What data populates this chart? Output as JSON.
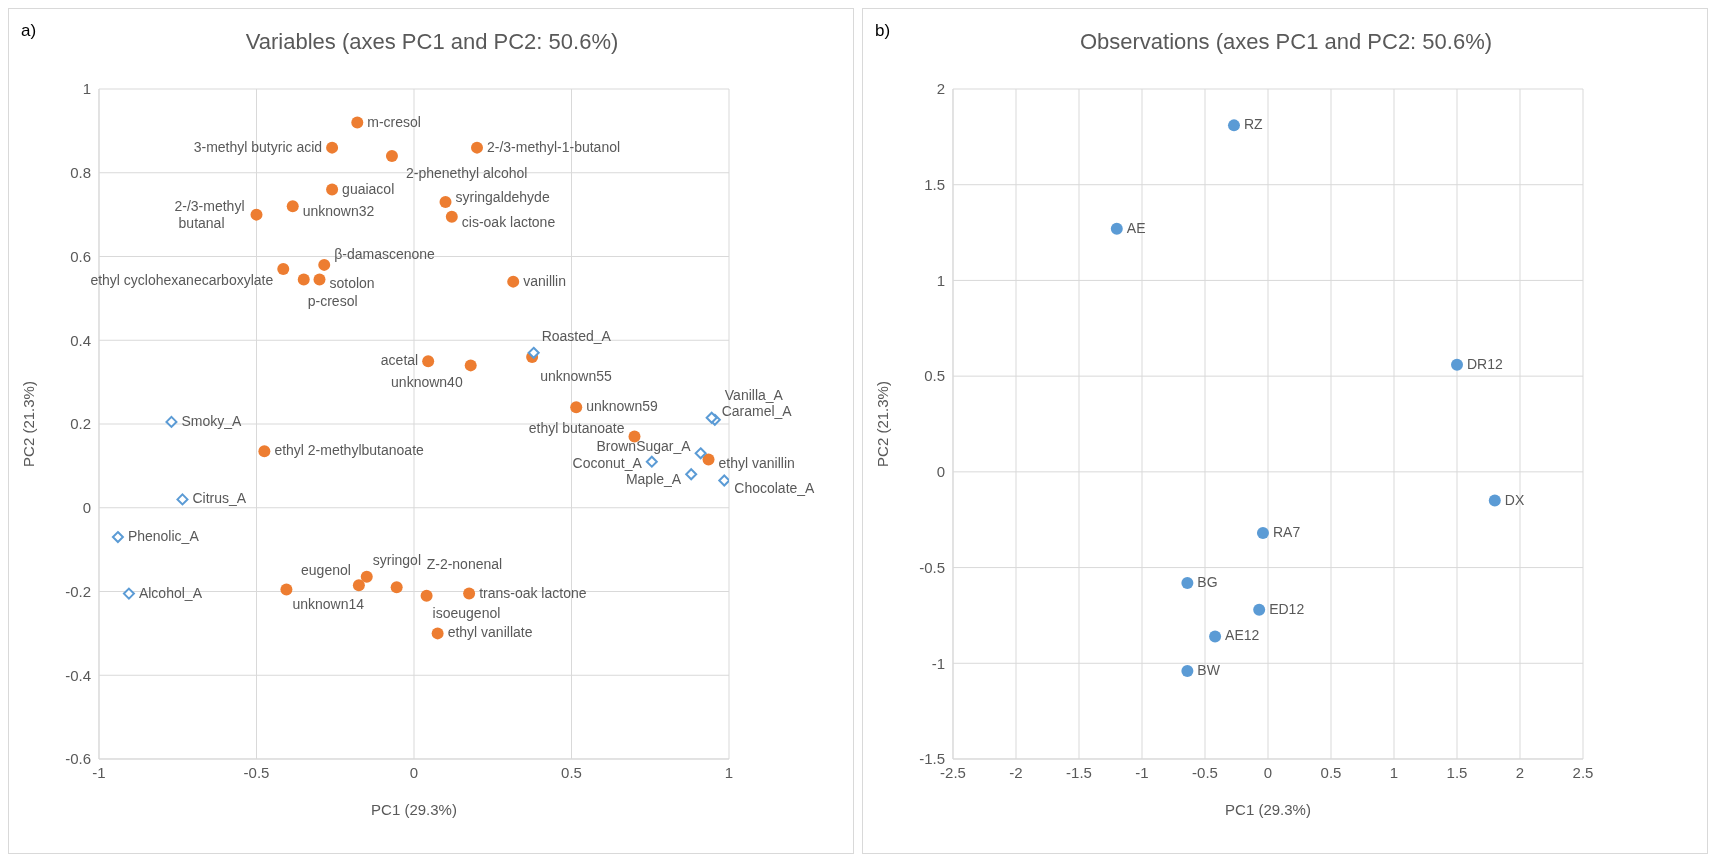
{
  "chart_data": [
    {
      "type": "scatter",
      "title": "Variables (axes PC1 and PC2: 50.6%)",
      "xlabel": "PC1 (29.3%)",
      "ylabel": "PC2 (21.3%)",
      "xlim": [
        -1,
        1
      ],
      "xticks": [
        -1,
        -0.5,
        0,
        0.5,
        1
      ],
      "ylim": [
        -0.6,
        1
      ],
      "yticks": [
        -0.6,
        -0.4,
        -0.2,
        0,
        0.2,
        0.4,
        0.6,
        0.8,
        1
      ],
      "grid": true,
      "annotations": [
        "a)",
        {
          "text": "m-cresol",
          "x": -0.18,
          "y": 0.92
        },
        {
          "text": "3-methyl butyric acid",
          "x": -0.26,
          "y": 0.86
        },
        {
          "text": "2-/3-methyl-1-butanol",
          "x": 0.2,
          "y": 0.86
        },
        {
          "text": "2-phenethyl alcohol",
          "x": -0.07,
          "y": 0.84
        },
        {
          "text": "guaiacol",
          "x": -0.26,
          "y": 0.76
        },
        {
          "text": "unknown32",
          "x": -0.385,
          "y": 0.72
        },
        {
          "text": "2-/3-methyl butanal",
          "x": -0.5,
          "y": 0.7
        },
        {
          "text": "syringaldehyde",
          "x": 0.1,
          "y": 0.73
        },
        {
          "text": "cis-oak lactone",
          "x": 0.12,
          "y": 0.695
        },
        {
          "text": "β-damascenone",
          "x": -0.285,
          "y": 0.58
        },
        {
          "text": "ethyl cyclohexanecarboxylate",
          "x": -0.415,
          "y": 0.57
        },
        {
          "text": "sotolon",
          "x": -0.3,
          "y": 0.545
        },
        {
          "text": "p-cresol",
          "x": -0.35,
          "y": 0.545
        },
        {
          "text": "vanillin",
          "x": 0.315,
          "y": 0.54
        },
        {
          "text": "acetal",
          "x": 0.045,
          "y": 0.35
        },
        {
          "text": "unknown40",
          "x": 0.18,
          "y": 0.34
        },
        {
          "text": "unknown55",
          "x": 0.375,
          "y": 0.36
        },
        {
          "text": "unknown59",
          "x": 0.515,
          "y": 0.24
        },
        {
          "text": "ethyl butanoate",
          "x": 0.7,
          "y": 0.17
        },
        {
          "text": "ethyl vanillin",
          "x": 0.935,
          "y": 0.115
        },
        {
          "text": "ethyl 2-methylbutanoate",
          "x": -0.475,
          "y": 0.135
        },
        {
          "text": "eugenol",
          "x": -0.175,
          "y": -0.185
        },
        {
          "text": "syringol",
          "x": -0.15,
          "y": -0.165
        },
        {
          "text": "Z-2-nonenal",
          "x": -0.055,
          "y": -0.19
        },
        {
          "text": "unknown14",
          "x": -0.405,
          "y": -0.195
        },
        {
          "text": "isoeugenol",
          "x": 0.04,
          "y": -0.21
        },
        {
          "text": "trans-oak lactone",
          "x": 0.175,
          "y": -0.205
        },
        {
          "text": "ethyl vanillate",
          "x": 0.075,
          "y": -0.3
        },
        {
          "text": "Smoky_A",
          "x": -0.77,
          "y": 0.205
        },
        {
          "text": "Citrus_A",
          "x": -0.735,
          "y": 0.02
        },
        {
          "text": "Phenolic_A",
          "x": -0.94,
          "y": -0.07
        },
        {
          "text": "Alcohol_A",
          "x": -0.905,
          "y": -0.205
        },
        {
          "text": "Roasted_A",
          "x": 0.38,
          "y": 0.37
        },
        {
          "text": "Vanilla_A",
          "x": 0.955,
          "y": 0.21
        },
        {
          "text": "Caramel_A",
          "x": 0.945,
          "y": 0.215
        },
        {
          "text": "BrownSugar_A",
          "x": 0.91,
          "y": 0.13
        },
        {
          "text": "Coconut_A",
          "x": 0.755,
          "y": 0.11
        },
        {
          "text": "Maple_A",
          "x": 0.88,
          "y": 0.08
        },
        {
          "text": "Chocolate_A",
          "x": 0.985,
          "y": 0.065
        }
      ],
      "series": [
        {
          "color": "#ed7d31",
          "marker": "circle",
          "x": [
            -0.18,
            -0.26,
            0.2,
            -0.07,
            -0.26,
            -0.385,
            -0.5,
            0.1,
            0.12,
            -0.285,
            -0.415,
            -0.3,
            -0.35,
            0.315,
            0.045,
            0.18,
            0.375,
            0.515,
            0.7,
            0.935,
            -0.475,
            -0.175,
            -0.15,
            -0.055,
            -0.405,
            0.04,
            0.175,
            0.075
          ],
          "values": [
            0.92,
            0.86,
            0.86,
            0.84,
            0.76,
            0.72,
            0.7,
            0.73,
            0.695,
            0.58,
            0.57,
            0.545,
            0.545,
            0.54,
            0.35,
            0.34,
            0.36,
            0.24,
            0.17,
            0.115,
            0.135,
            -0.185,
            -0.165,
            -0.19,
            -0.195,
            -0.21,
            -0.205,
            -0.3
          ]
        },
        {
          "color": "#5b9bd5",
          "marker": "diamond",
          "x": [
            -0.77,
            -0.735,
            -0.94,
            -0.905,
            0.38,
            0.955,
            0.945,
            0.91,
            0.755,
            0.88,
            0.985
          ],
          "values": [
            0.205,
            0.02,
            -0.07,
            -0.205,
            0.37,
            0.21,
            0.215,
            0.13,
            0.11,
            0.08,
            0.065
          ]
        }
      ]
    },
    {
      "type": "scatter",
      "title": "Observations (axes PC1 and PC2: 50.6%)",
      "xlabel": "PC1 (29.3%)",
      "ylabel": "PC2 (21.3%)",
      "xlim": [
        -2.5,
        2.5
      ],
      "xticks": [
        -2.5,
        -2,
        -1.5,
        -1,
        -0.5,
        0,
        0.5,
        1,
        1.5,
        2,
        2.5
      ],
      "ylim": [
        -1.5,
        2
      ],
      "yticks": [
        -1.5,
        -1,
        -0.5,
        0,
        0.5,
        1,
        1.5,
        2
      ],
      "grid": true,
      "annotations": [
        "b)",
        {
          "text": "RZ",
          "x": -0.27,
          "y": 1.81
        },
        {
          "text": "AE",
          "x": -1.2,
          "y": 1.27
        },
        {
          "text": "DR12",
          "x": 1.5,
          "y": 0.56
        },
        {
          "text": "DX",
          "x": 1.8,
          "y": -0.15
        },
        {
          "text": "RA7",
          "x": -0.04,
          "y": -0.32
        },
        {
          "text": "BG",
          "x": -0.64,
          "y": -0.58
        },
        {
          "text": "ED12",
          "x": -0.07,
          "y": -0.72
        },
        {
          "text": "AE12",
          "x": -0.42,
          "y": -0.86
        },
        {
          "text": "BW",
          "x": -0.64,
          "y": -1.04
        }
      ],
      "series": [
        {
          "color": "#5b9bd5",
          "marker": "circle",
          "x": [
            -0.27,
            -1.2,
            1.5,
            1.8,
            -0.04,
            -0.64,
            -0.07,
            -0.42,
            -0.64
          ],
          "values": [
            1.81,
            1.27,
            0.56,
            -0.15,
            -0.32,
            -0.58,
            -0.72,
            -0.86,
            -1.04
          ]
        }
      ]
    }
  ]
}
